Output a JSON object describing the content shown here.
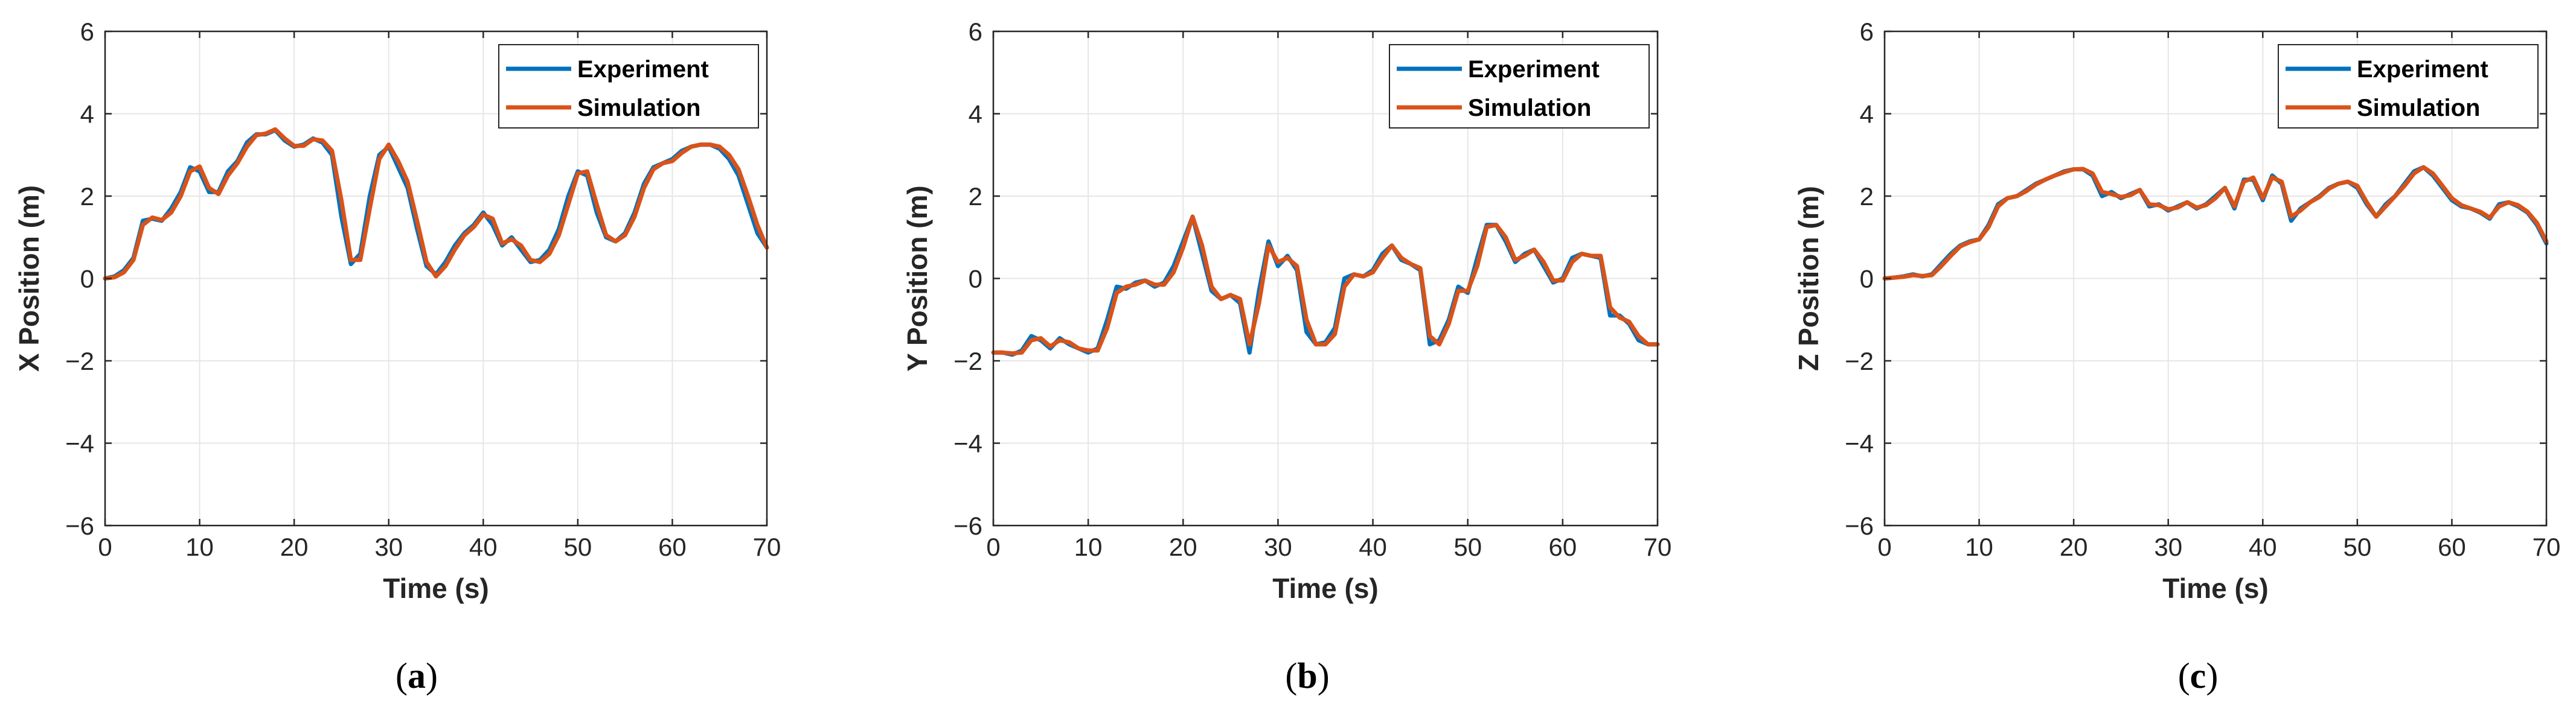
{
  "colors": {
    "experiment": "#0072BD",
    "simulation": "#D95319",
    "grid": "#E6E6E6",
    "axis": "#262626"
  },
  "chart_data": [
    {
      "type": "line",
      "caption_letter": "a",
      "xlabel": "Time (s)",
      "ylabel": "X Position (m)",
      "xlim": [
        0,
        70
      ],
      "ylim": [
        -6,
        6
      ],
      "xticks": [
        0,
        10,
        20,
        30,
        40,
        50,
        60,
        70
      ],
      "yticks": [
        -6,
        -4,
        -2,
        0,
        2,
        4,
        6
      ],
      "grid": true,
      "legend": {
        "position": "top-right",
        "entries": [
          "Experiment",
          "Simulation"
        ]
      },
      "series": [
        {
          "name": "Experiment",
          "color": "#0072BD",
          "x": [
            0,
            1,
            2,
            3,
            4,
            5,
            6,
            7,
            8,
            9,
            10,
            11,
            12,
            13,
            14,
            15,
            16,
            17,
            18,
            19,
            20,
            21,
            22,
            23,
            24,
            25,
            26,
            27,
            28,
            29,
            30,
            31,
            32,
            33,
            34,
            35,
            36,
            37,
            38,
            39,
            40,
            41,
            42,
            43,
            44,
            45,
            46,
            47,
            48,
            49,
            50,
            51,
            52,
            53,
            54,
            55,
            56,
            57,
            58,
            59,
            60,
            61,
            62,
            63,
            64,
            65,
            66,
            67,
            68,
            69,
            70
          ],
          "y": [
            0,
            0.05,
            0.2,
            0.5,
            1.4,
            1.45,
            1.4,
            1.7,
            2.1,
            2.7,
            2.6,
            2.1,
            2.1,
            2.6,
            2.85,
            3.3,
            3.5,
            3.5,
            3.6,
            3.35,
            3.2,
            3.25,
            3.4,
            3.3,
            3.0,
            1.5,
            0.35,
            0.6,
            2.0,
            3.0,
            3.2,
            2.7,
            2.2,
            1.2,
            0.3,
            0.1,
            0.4,
            0.8,
            1.1,
            1.3,
            1.6,
            1.3,
            0.8,
            1.0,
            0.7,
            0.4,
            0.45,
            0.7,
            1.2,
            2.0,
            2.6,
            2.5,
            1.6,
            1.0,
            0.9,
            1.1,
            1.6,
            2.3,
            2.7,
            2.8,
            2.9,
            3.1,
            3.2,
            3.25,
            3.25,
            3.15,
            2.9,
            2.5,
            1.8,
            1.1,
            0.75
          ]
        },
        {
          "name": "Simulation",
          "color": "#D95319",
          "x": [
            0,
            1,
            2,
            3,
            4,
            5,
            6,
            7,
            8,
            9,
            10,
            11,
            12,
            13,
            14,
            15,
            16,
            17,
            18,
            19,
            20,
            21,
            22,
            23,
            24,
            25,
            26,
            27,
            28,
            29,
            30,
            31,
            32,
            33,
            34,
            35,
            36,
            37,
            38,
            39,
            40,
            41,
            42,
            43,
            44,
            45,
            46,
            47,
            48,
            49,
            50,
            51,
            52,
            53,
            54,
            55,
            56,
            57,
            58,
            59,
            60,
            61,
            62,
            63,
            64,
            65,
            66,
            67,
            68,
            69,
            70
          ],
          "y": [
            0,
            0.03,
            0.15,
            0.45,
            1.3,
            1.48,
            1.42,
            1.6,
            2.0,
            2.6,
            2.72,
            2.2,
            2.05,
            2.5,
            2.8,
            3.2,
            3.48,
            3.52,
            3.62,
            3.4,
            3.22,
            3.22,
            3.38,
            3.35,
            3.1,
            1.9,
            0.45,
            0.45,
            1.7,
            2.9,
            3.25,
            2.85,
            2.35,
            1.4,
            0.4,
            0.05,
            0.3,
            0.7,
            1.05,
            1.25,
            1.55,
            1.45,
            0.85,
            0.95,
            0.8,
            0.45,
            0.4,
            0.6,
            1.05,
            1.8,
            2.55,
            2.6,
            1.8,
            1.05,
            0.9,
            1.05,
            1.5,
            2.2,
            2.65,
            2.8,
            2.85,
            3.05,
            3.2,
            3.25,
            3.25,
            3.2,
            3.0,
            2.65,
            2.0,
            1.3,
            0.75
          ]
        }
      ]
    },
    {
      "type": "line",
      "caption_letter": "b",
      "xlabel": "Time (s)",
      "ylabel": "Y Position (m)",
      "xlim": [
        0,
        70
      ],
      "ylim": [
        -6,
        6
      ],
      "xticks": [
        0,
        10,
        20,
        30,
        40,
        50,
        60,
        70
      ],
      "yticks": [
        -6,
        -4,
        -2,
        0,
        2,
        4,
        6
      ],
      "grid": true,
      "legend": {
        "position": "top-right",
        "entries": [
          "Experiment",
          "Simulation"
        ]
      },
      "series": [
        {
          "name": "Experiment",
          "color": "#0072BD",
          "x": [
            0,
            1,
            2,
            3,
            4,
            5,
            6,
            7,
            8,
            9,
            10,
            11,
            12,
            13,
            14,
            15,
            16,
            17,
            18,
            19,
            20,
            21,
            22,
            23,
            24,
            25,
            26,
            27,
            28,
            29,
            30,
            31,
            32,
            33,
            34,
            35,
            36,
            37,
            38,
            39,
            40,
            41,
            42,
            43,
            44,
            45,
            46,
            47,
            48,
            49,
            50,
            51,
            52,
            53,
            54,
            55,
            56,
            57,
            58,
            59,
            60,
            61,
            62,
            63,
            64,
            65,
            66,
            67,
            68,
            69,
            70
          ],
          "y": [
            -1.8,
            -1.8,
            -1.85,
            -1.75,
            -1.4,
            -1.5,
            -1.7,
            -1.45,
            -1.6,
            -1.7,
            -1.8,
            -1.7,
            -1.0,
            -0.2,
            -0.25,
            -0.1,
            -0.05,
            -0.2,
            -0.1,
            0.3,
            0.9,
            1.5,
            0.6,
            -0.3,
            -0.5,
            -0.4,
            -0.6,
            -1.8,
            -0.3,
            0.9,
            0.3,
            0.55,
            0.2,
            -1.3,
            -1.6,
            -1.55,
            -1.2,
            0.0,
            0.1,
            0.05,
            0.2,
            0.6,
            0.8,
            0.45,
            0.35,
            0.2,
            -1.6,
            -1.5,
            -1.0,
            -0.2,
            -0.35,
            0.5,
            1.3,
            1.3,
            0.9,
            0.4,
            0.6,
            0.7,
            0.3,
            -0.1,
            0.0,
            0.5,
            0.6,
            0.55,
            0.5,
            -0.9,
            -0.9,
            -1.1,
            -1.5,
            -1.6,
            -1.6
          ]
        },
        {
          "name": "Simulation",
          "color": "#D95319",
          "x": [
            0,
            1,
            2,
            3,
            4,
            5,
            6,
            7,
            8,
            9,
            10,
            11,
            12,
            13,
            14,
            15,
            16,
            17,
            18,
            19,
            20,
            21,
            22,
            23,
            24,
            25,
            26,
            27,
            28,
            29,
            30,
            31,
            32,
            33,
            34,
            35,
            36,
            37,
            38,
            39,
            40,
            41,
            42,
            43,
            44,
            45,
            46,
            47,
            48,
            49,
            50,
            51,
            52,
            53,
            54,
            55,
            56,
            57,
            58,
            59,
            60,
            61,
            62,
            63,
            64,
            65,
            66,
            67,
            68,
            69,
            70
          ],
          "y": [
            -1.8,
            -1.8,
            -1.82,
            -1.8,
            -1.5,
            -1.45,
            -1.65,
            -1.5,
            -1.55,
            -1.7,
            -1.75,
            -1.75,
            -1.2,
            -0.35,
            -0.2,
            -0.15,
            -0.05,
            -0.15,
            -0.15,
            0.15,
            0.75,
            1.5,
            0.8,
            -0.2,
            -0.5,
            -0.4,
            -0.5,
            -1.6,
            -0.6,
            0.8,
            0.4,
            0.5,
            0.3,
            -1.0,
            -1.6,
            -1.6,
            -1.35,
            -0.2,
            0.1,
            0.05,
            0.15,
            0.5,
            0.8,
            0.5,
            0.35,
            0.25,
            -1.4,
            -1.6,
            -1.1,
            -0.3,
            -0.3,
            0.3,
            1.25,
            1.3,
            1.0,
            0.45,
            0.55,
            0.7,
            0.4,
            -0.05,
            -0.05,
            0.4,
            0.6,
            0.55,
            0.55,
            -0.7,
            -0.95,
            -1.05,
            -1.4,
            -1.6,
            -1.6
          ]
        }
      ]
    },
    {
      "type": "line",
      "caption_letter": "c",
      "xlabel": "Time (s)",
      "ylabel": "Z Position (m)",
      "xlim": [
        0,
        70
      ],
      "ylim": [
        -6,
        6
      ],
      "xticks": [
        0,
        10,
        20,
        30,
        40,
        50,
        60,
        70
      ],
      "yticks": [
        -6,
        -4,
        -2,
        0,
        2,
        4,
        6
      ],
      "grid": true,
      "legend": {
        "position": "top-right",
        "entries": [
          "Experiment",
          "Simulation"
        ]
      },
      "series": [
        {
          "name": "Experiment",
          "color": "#0072BD",
          "x": [
            0,
            1,
            2,
            3,
            4,
            5,
            6,
            7,
            8,
            9,
            10,
            11,
            12,
            13,
            14,
            15,
            16,
            17,
            18,
            19,
            20,
            21,
            22,
            23,
            24,
            25,
            26,
            27,
            28,
            29,
            30,
            31,
            32,
            33,
            34,
            35,
            36,
            37,
            38,
            39,
            40,
            41,
            42,
            43,
            44,
            45,
            46,
            47,
            48,
            49,
            50,
            51,
            52,
            53,
            54,
            55,
            56,
            57,
            58,
            59,
            60,
            61,
            62,
            63,
            64,
            65,
            66,
            67,
            68,
            69,
            70
          ],
          "y": [
            0,
            0.02,
            0.05,
            0.1,
            0.05,
            0.1,
            0.35,
            0.6,
            0.8,
            0.9,
            0.95,
            1.3,
            1.8,
            1.95,
            2.0,
            2.15,
            2.3,
            2.4,
            2.5,
            2.6,
            2.65,
            2.65,
            2.5,
            2.0,
            2.1,
            1.95,
            2.05,
            2.15,
            1.75,
            1.8,
            1.65,
            1.75,
            1.85,
            1.7,
            1.8,
            2.0,
            2.2,
            1.7,
            2.4,
            2.4,
            1.9,
            2.5,
            2.3,
            1.4,
            1.7,
            1.85,
            2.0,
            2.2,
            2.3,
            2.35,
            2.2,
            1.8,
            1.5,
            1.8,
            2.0,
            2.3,
            2.6,
            2.7,
            2.5,
            2.2,
            1.9,
            1.75,
            1.7,
            1.6,
            1.45,
            1.8,
            1.85,
            1.75,
            1.6,
            1.3,
            0.85
          ]
        },
        {
          "name": "Simulation",
          "color": "#D95319",
          "x": [
            0,
            1,
            2,
            3,
            4,
            5,
            6,
            7,
            8,
            9,
            10,
            11,
            12,
            13,
            14,
            15,
            16,
            17,
            18,
            19,
            20,
            21,
            22,
            23,
            24,
            25,
            26,
            27,
            28,
            29,
            30,
            31,
            32,
            33,
            34,
            35,
            36,
            37,
            38,
            39,
            40,
            41,
            42,
            43,
            44,
            45,
            46,
            47,
            48,
            49,
            50,
            51,
            52,
            53,
            54,
            55,
            56,
            57,
            58,
            59,
            60,
            61,
            62,
            63,
            64,
            65,
            66,
            67,
            68,
            69,
            70
          ],
          "y": [
            0,
            0.02,
            0.04,
            0.08,
            0.06,
            0.08,
            0.3,
            0.55,
            0.78,
            0.88,
            0.95,
            1.25,
            1.75,
            1.95,
            2.0,
            2.12,
            2.28,
            2.4,
            2.5,
            2.58,
            2.65,
            2.66,
            2.55,
            2.1,
            2.05,
            1.98,
            2.02,
            2.15,
            1.8,
            1.78,
            1.68,
            1.72,
            1.85,
            1.72,
            1.78,
            1.95,
            2.2,
            1.75,
            2.35,
            2.45,
            1.95,
            2.45,
            2.35,
            1.5,
            1.65,
            1.85,
            1.98,
            2.18,
            2.3,
            2.35,
            2.25,
            1.85,
            1.5,
            1.75,
            2.0,
            2.25,
            2.55,
            2.7,
            2.55,
            2.25,
            1.95,
            1.78,
            1.7,
            1.62,
            1.48,
            1.75,
            1.85,
            1.78,
            1.62,
            1.35,
            0.9
          ]
        }
      ]
    }
  ]
}
